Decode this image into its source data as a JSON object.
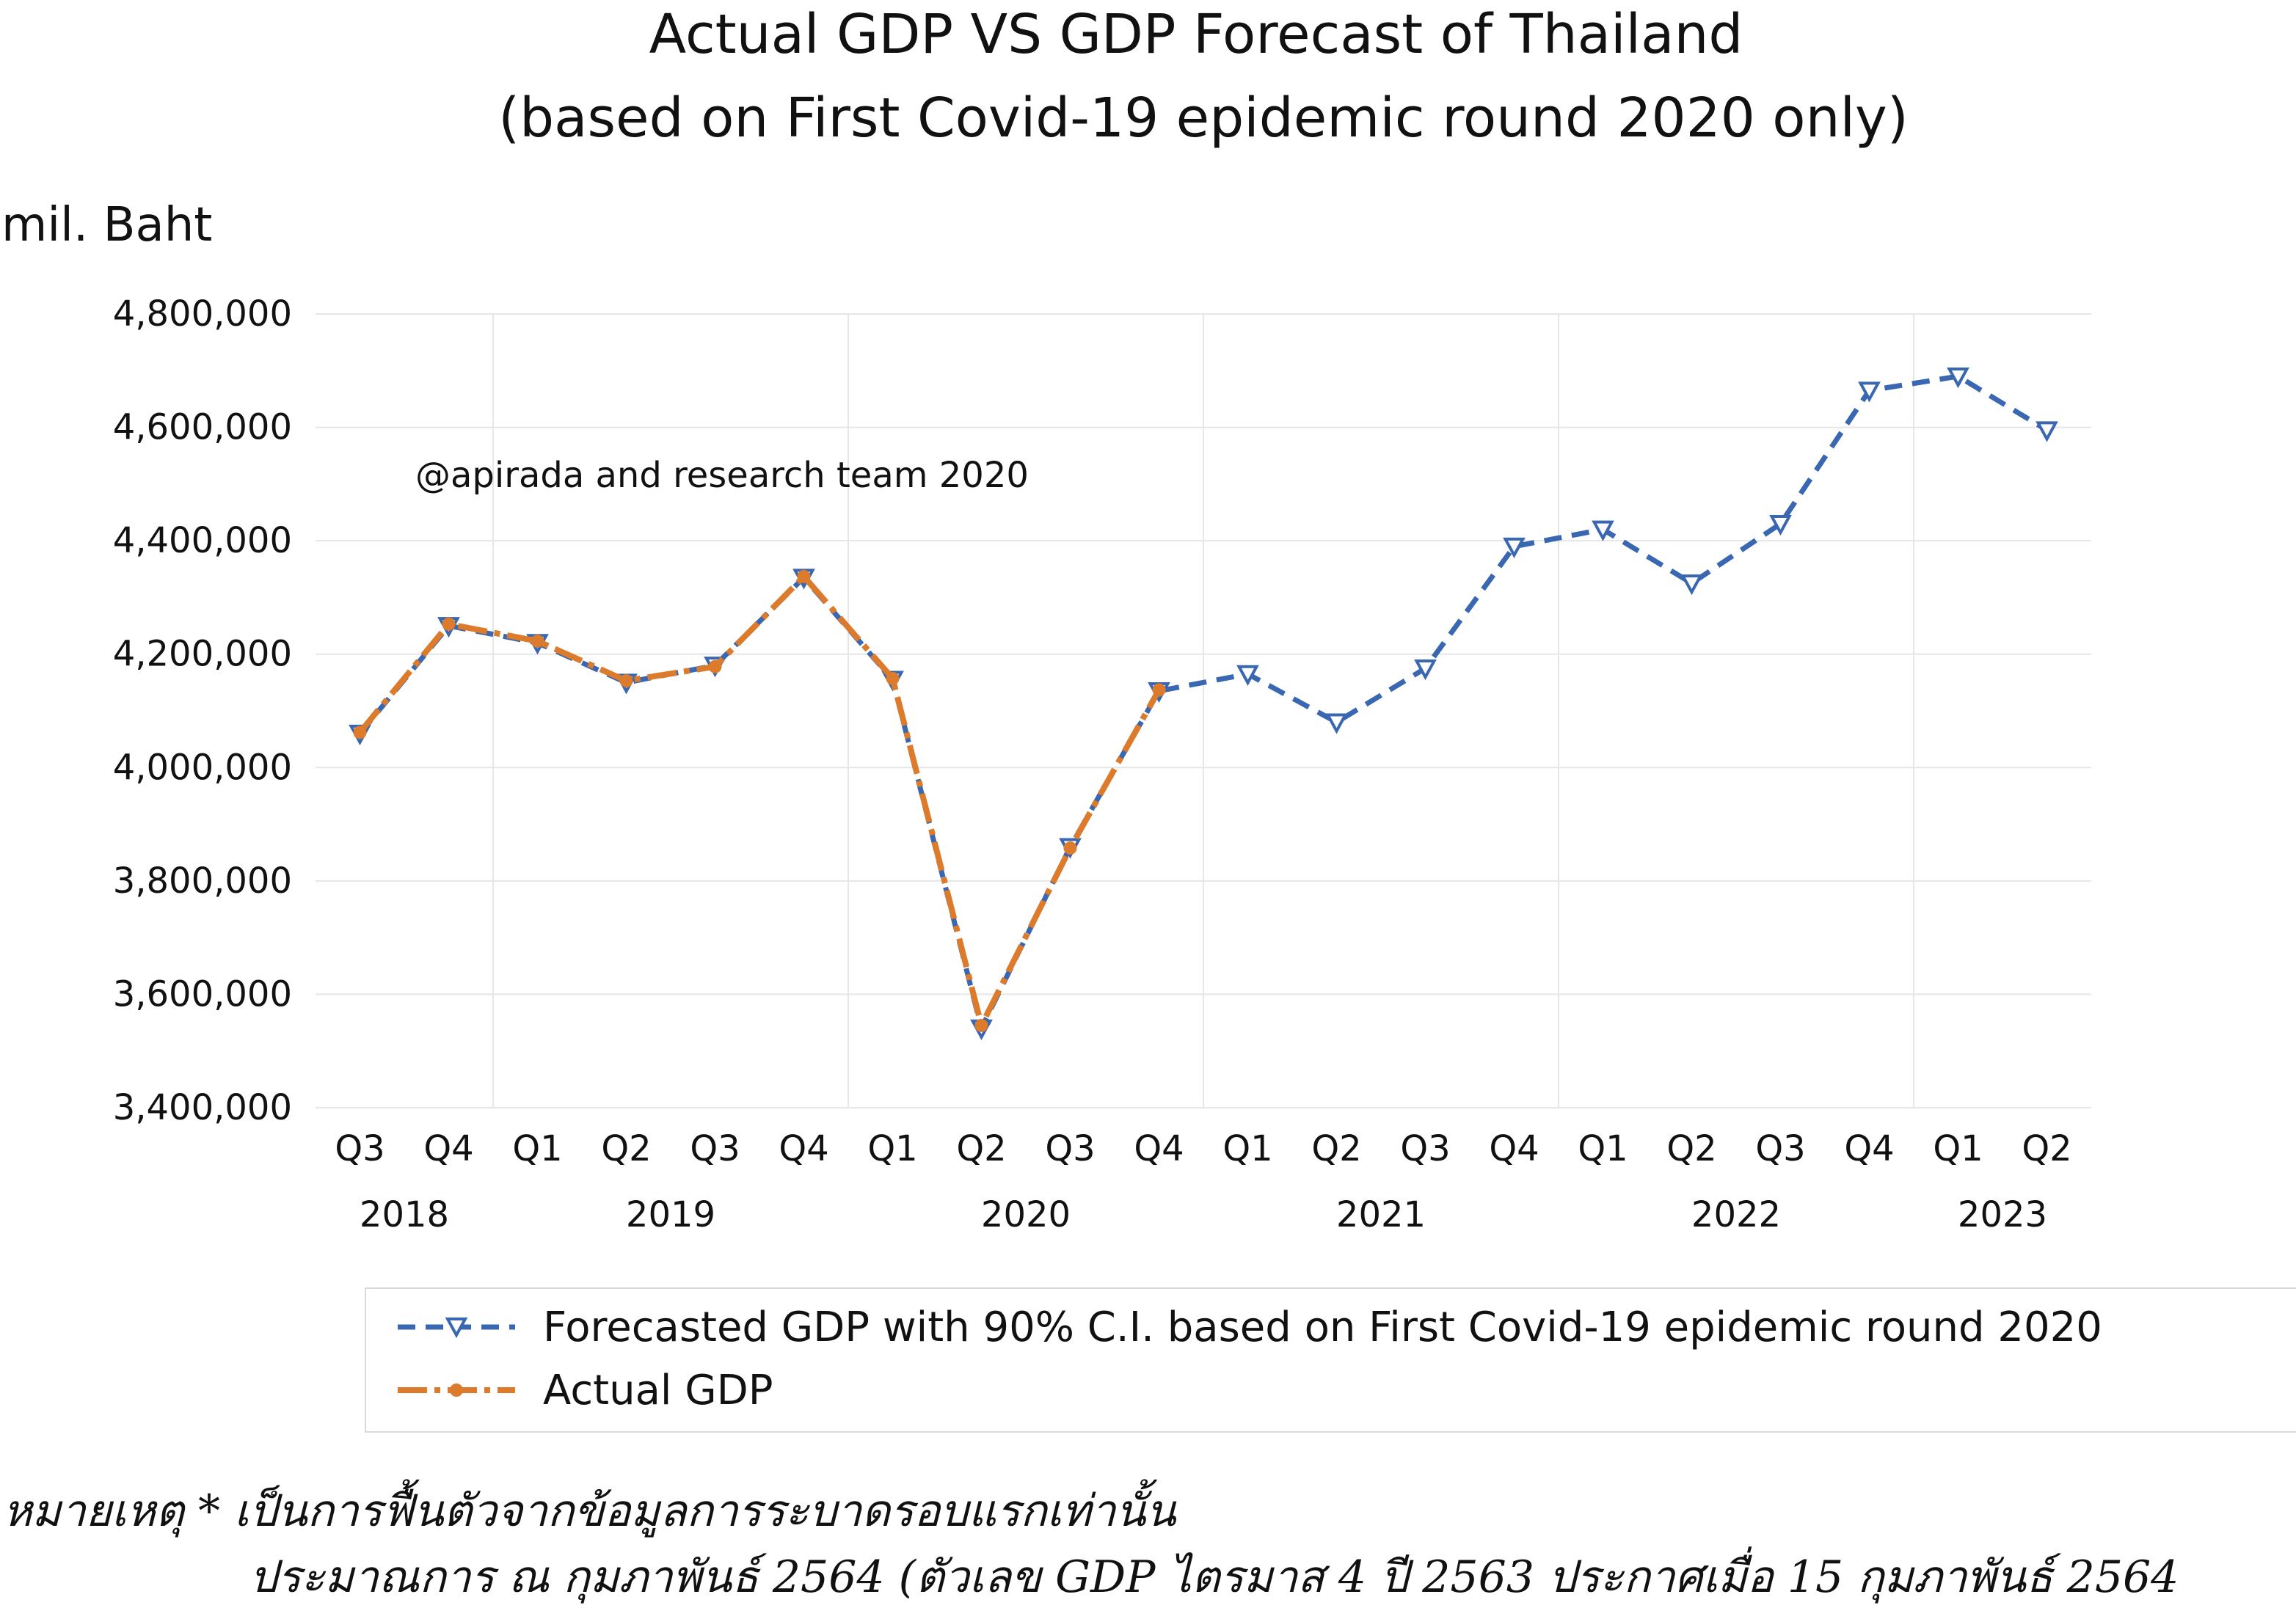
{
  "chart_data": {
    "type": "line",
    "title": "Actual GDP VS GDP Forecast of Thailand",
    "subtitle": "(based on First Covid-19 epidemic round 2020 only)",
    "ylabel": "mil. Baht",
    "xlabel": "",
    "ylim": [
      3400000,
      4800000
    ],
    "yticks": [
      3400000,
      3600000,
      3800000,
      4000000,
      4200000,
      4400000,
      4600000,
      4800000
    ],
    "ytick_labels": [
      "3,400,000",
      "3,600,000",
      "3,800,000",
      "4,000,000",
      "4,200,000",
      "4,400,000",
      "4,600,000",
      "4,800,000"
    ],
    "categories": [
      "Q3",
      "Q4",
      "Q1",
      "Q2",
      "Q3",
      "Q4",
      "Q1",
      "Q2",
      "Q3",
      "Q4",
      "Q1",
      "Q2",
      "Q3",
      "Q4",
      "Q1",
      "Q2",
      "Q3",
      "Q4",
      "Q1",
      "Q2"
    ],
    "year_labels": [
      {
        "label": "2018",
        "from": 0,
        "to": 1
      },
      {
        "label": "2019",
        "from": 2,
        "to": 5
      },
      {
        "label": "2020",
        "from": 6,
        "to": 9
      },
      {
        "label": "2021",
        "from": 10,
        "to": 13
      },
      {
        "label": "2022",
        "from": 14,
        "to": 17
      },
      {
        "label": "2023",
        "from": 18,
        "to": 19
      }
    ],
    "year_separators_after": [
      1,
      5,
      9,
      13,
      17
    ],
    "grid": true,
    "legend_position": "bottom-right",
    "series": [
      {
        "name": "Forecasted GDP with 90% C.I. based on First Covid-19 epidemic round 2020",
        "color": "#3A67B1",
        "style": "dashed",
        "marker": "triangle-down",
        "values": [
          4060000,
          4250000,
          4220000,
          4150000,
          4180000,
          4335000,
          4155000,
          3540000,
          3860000,
          4135000,
          4165000,
          4080000,
          4175000,
          4390000,
          4420000,
          4325000,
          4430000,
          4665000,
          4690000,
          4595000
        ]
      },
      {
        "name": "Actual GDP",
        "color": "#DB7B2B",
        "style": "dashdot",
        "marker": "circle",
        "values": [
          4062000,
          4253000,
          4223000,
          4153000,
          4178000,
          4337000,
          4157000,
          3545000,
          3858000,
          4137000,
          null,
          null,
          null,
          null,
          null,
          null,
          null,
          null,
          null,
          null
        ]
      }
    ],
    "annotations": [
      "@apirada and research team 2020"
    ]
  },
  "note": {
    "line1": "หมายเหตุ * เป็นการฟื้นตัวจากข้อมูลการระบาดรอบแรกเท่านั้น",
    "line2": "ประมาณการ ณ กุมภาพันธ์ 2564 (ตัวเลข GDP ไตรมาส 4 ปี 2563 ประกาศเมื่อ 15 กุมภาพันธ์ 2564"
  }
}
